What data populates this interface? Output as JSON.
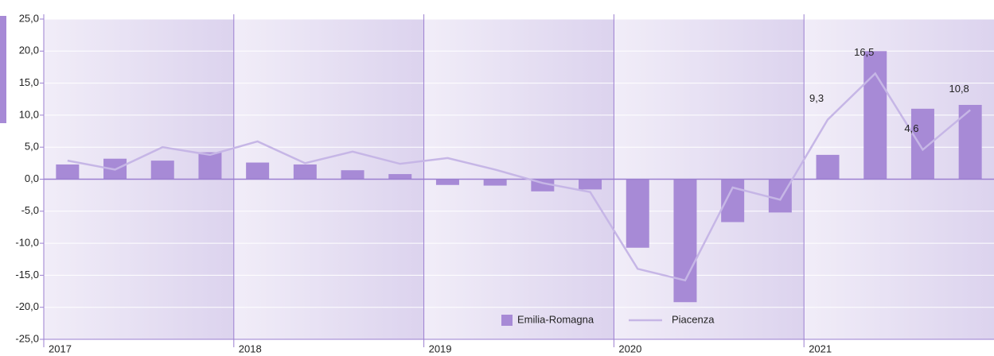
{
  "chart_data": {
    "type": "bar-line",
    "categories": [
      "2017",
      null,
      null,
      null,
      "2018",
      null,
      null,
      null,
      "2019",
      null,
      null,
      null,
      "2020",
      null,
      null,
      null,
      "2021",
      null,
      null,
      null
    ],
    "series": [
      {
        "name": "Emilia-Romagna",
        "type": "bar",
        "color": "#a78ad6",
        "values": [
          2.3,
          3.2,
          2.9,
          4.2,
          2.6,
          2.3,
          1.4,
          0.8,
          -0.9,
          -1.0,
          -1.9,
          -1.6,
          -10.7,
          -19.2,
          -6.7,
          -5.2,
          3.8,
          20.0,
          11.0,
          11.6
        ]
      },
      {
        "name": "Piacenza",
        "type": "line",
        "color": "#c6b6e6",
        "values": [
          2.9,
          1.5,
          5.0,
          3.8,
          5.9,
          2.5,
          4.3,
          2.4,
          3.3,
          1.5,
          -0.6,
          -2.0,
          -14.0,
          -15.8,
          -1.3,
          -3.2,
          9.3,
          16.5,
          4.6,
          10.8
        ],
        "value_labels": [
          null,
          null,
          null,
          null,
          null,
          null,
          null,
          null,
          null,
          null,
          null,
          null,
          null,
          null,
          null,
          null,
          "9,3",
          "16,5",
          "4,6",
          "10,8"
        ]
      }
    ],
    "ylim": [
      -25,
      25
    ],
    "yticks": [
      {
        "value": -25,
        "label": "-25,0"
      },
      {
        "value": -20,
        "label": "-20,0"
      },
      {
        "value": -15,
        "label": "-15,0"
      },
      {
        "value": -10,
        "label": "-10,0"
      },
      {
        "value": -5,
        "label": "-5,0"
      },
      {
        "value": 0,
        "label": "0,0"
      },
      {
        "value": 5,
        "label": "5,0"
      },
      {
        "value": 10,
        "label": "10,0"
      },
      {
        "value": 15,
        "label": "15,0"
      },
      {
        "value": 20,
        "label": "20,0"
      },
      {
        "value": 25,
        "label": "25,0"
      }
    ],
    "grid": true,
    "legend": "bottom"
  }
}
